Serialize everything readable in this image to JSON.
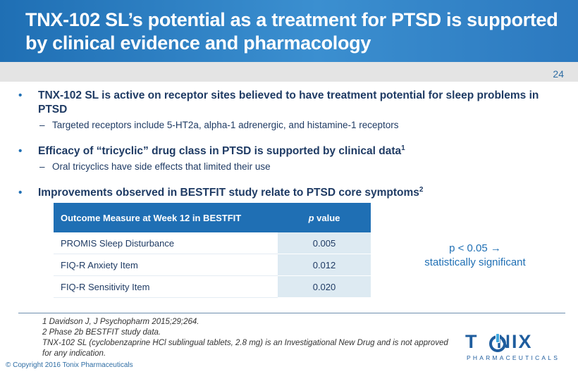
{
  "header": {
    "title": "TNX-102 SL’s potential as a treatment for PTSD is supported by clinical evidence and pharmacology"
  },
  "page_number": "24",
  "bullets": [
    {
      "text": "TNX-102 SL is active on receptor sites believed to have treatment potential for sleep problems in PTSD",
      "sup": "",
      "sub": "Targeted receptors include 5-HT2a, alpha-1 adrenergic, and histamine-1 receptors"
    },
    {
      "text": "Efficacy of “tricyclic” drug class in PTSD is supported by clinical data",
      "sup": "1",
      "sub": "Oral tricyclics have side effects that limited their use"
    },
    {
      "text": "Improvements observed in BESTFIT study relate to PTSD core symptoms",
      "sup": "2",
      "sub": ""
    }
  ],
  "table": {
    "header_measure": "Outcome Measure at Week 12 in BESTFIT",
    "header_p_italic": "p",
    "header_p_rest": " value",
    "rows": [
      {
        "measure": "PROMIS Sleep Disturbance",
        "p": "0.005"
      },
      {
        "measure": "FIQ-R Anxiety Item",
        "p": "0.012"
      },
      {
        "measure": "FIQ-R Sensitivity Item",
        "p": "0.020"
      }
    ]
  },
  "significance_note": {
    "line1": "p < 0.05 →",
    "line2": "statistically significant"
  },
  "references": [
    "1 Davidson J, J Psychopharm 2015;29;264.",
    "2 Phase 2b BESTFIT study data.",
    "TNX-102 SL (cyclobenzaprine HCl sublingual tablets, 2.8 mg) is an Investigational New Drug and is not approved for any indication."
  ],
  "copyright": "© Copyright 2016 Tonix Pharmaceuticals",
  "logo": {
    "word": "TONIX",
    "subword": "PHARMACEUTICALS",
    "color": "#1f5d9e"
  },
  "colors": {
    "header_blue": "#1f6fb4",
    "text_navy": "#1f3b64",
    "table_value_bg": "#ddeaf2"
  }
}
